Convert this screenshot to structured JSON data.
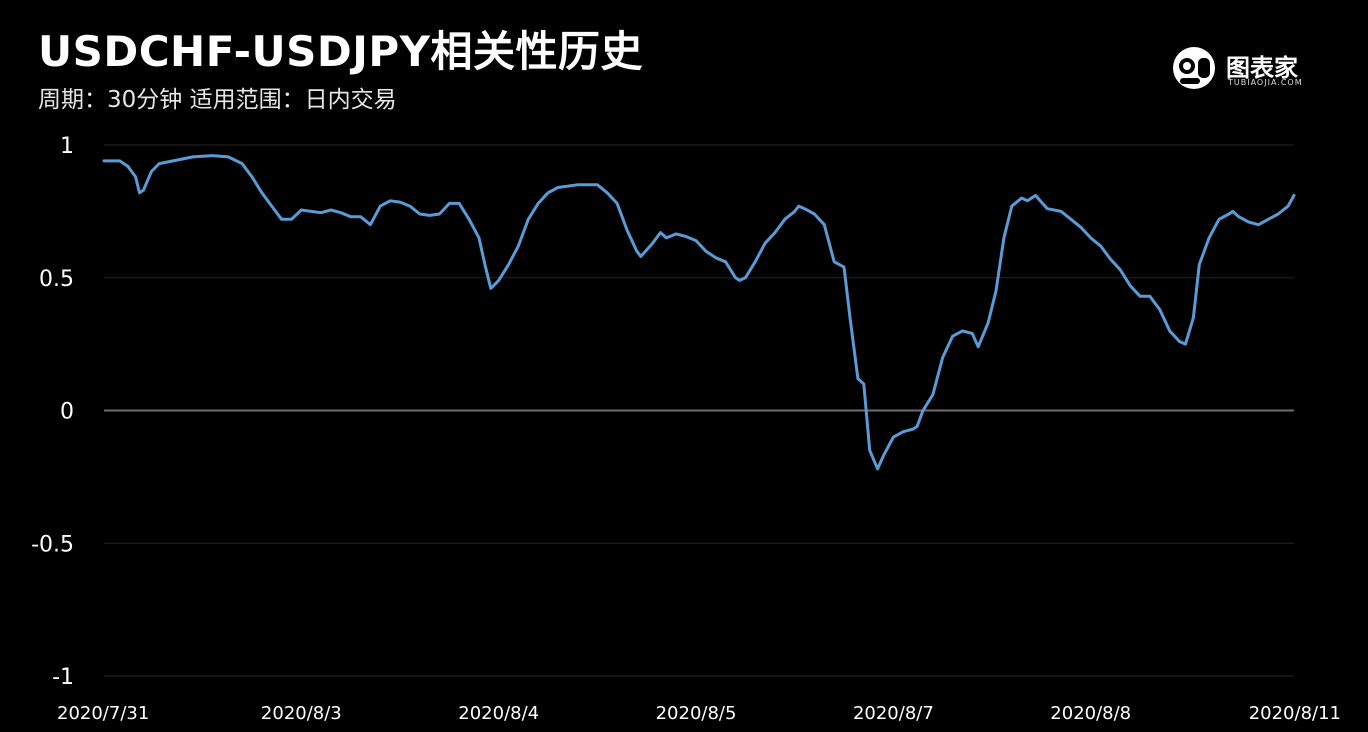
{
  "header": {
    "title": "USDCHF-USDJPY相关性历史",
    "subtitle": "周期：30分钟  适用范围：日内交易"
  },
  "logo": {
    "name": "图表家",
    "sub": "TUBIAOJIA.COM"
  },
  "chart_data": {
    "type": "line",
    "ylim": [
      -1,
      1
    ],
    "yticks": [
      1,
      0.5,
      0,
      -0.5,
      -1
    ],
    "ytick_labels": [
      "1",
      "0.5",
      "0",
      "-0.5",
      "-1"
    ],
    "xticks": [
      {
        "label": "2020/7/31",
        "x": 0
      },
      {
        "label": "2020/8/3",
        "x": 1
      },
      {
        "label": "2020/8/4",
        "x": 2
      },
      {
        "label": "2020/8/5",
        "x": 3
      },
      {
        "label": "2020/8/7",
        "x": 4
      },
      {
        "label": "2020/8/8",
        "x": 5
      },
      {
        "label": "2020/8/11",
        "x": 6
      }
    ],
    "grid": true,
    "line_color": "#5b9bd5",
    "series": [
      {
        "values": [
          [
            0.0,
            0.94
          ],
          [
            0.05,
            0.94
          ],
          [
            0.08,
            0.94
          ],
          [
            0.12,
            0.92
          ],
          [
            0.16,
            0.88
          ],
          [
            0.18,
            0.82
          ],
          [
            0.2,
            0.83
          ],
          [
            0.24,
            0.9
          ],
          [
            0.28,
            0.93
          ],
          [
            0.35,
            0.94
          ],
          [
            0.45,
            0.955
          ],
          [
            0.55,
            0.96
          ],
          [
            0.63,
            0.955
          ],
          [
            0.7,
            0.93
          ],
          [
            0.75,
            0.88
          ],
          [
            0.8,
            0.82
          ],
          [
            0.85,
            0.77
          ],
          [
            0.9,
            0.72
          ],
          [
            0.95,
            0.72
          ],
          [
            1.0,
            0.755
          ],
          [
            1.05,
            0.75
          ],
          [
            1.1,
            0.745
          ],
          [
            1.15,
            0.755
          ],
          [
            1.2,
            0.745
          ],
          [
            1.25,
            0.73
          ],
          [
            1.3,
            0.73
          ],
          [
            1.35,
            0.7
          ],
          [
            1.4,
            0.77
          ],
          [
            1.45,
            0.79
          ],
          [
            1.5,
            0.785
          ],
          [
            1.55,
            0.77
          ],
          [
            1.6,
            0.74
          ],
          [
            1.65,
            0.735
          ],
          [
            1.7,
            0.74
          ],
          [
            1.75,
            0.78
          ],
          [
            1.8,
            0.78
          ],
          [
            1.85,
            0.72
          ],
          [
            1.9,
            0.65
          ],
          [
            1.93,
            0.55
          ],
          [
            1.96,
            0.46
          ],
          [
            2.0,
            0.49
          ],
          [
            2.05,
            0.55
          ],
          [
            2.1,
            0.62
          ],
          [
            2.15,
            0.72
          ],
          [
            2.2,
            0.78
          ],
          [
            2.25,
            0.82
          ],
          [
            2.3,
            0.84
          ],
          [
            2.4,
            0.85
          ],
          [
            2.5,
            0.85
          ],
          [
            2.55,
            0.82
          ],
          [
            2.6,
            0.78
          ],
          [
            2.65,
            0.68
          ],
          [
            2.7,
            0.6
          ],
          [
            2.72,
            0.58
          ],
          [
            2.78,
            0.63
          ],
          [
            2.82,
            0.67
          ],
          [
            2.85,
            0.65
          ],
          [
            2.9,
            0.665
          ],
          [
            2.95,
            0.655
          ],
          [
            3.0,
            0.64
          ],
          [
            3.05,
            0.6
          ],
          [
            3.1,
            0.575
          ],
          [
            3.15,
            0.56
          ],
          [
            3.2,
            0.5
          ],
          [
            3.22,
            0.49
          ],
          [
            3.25,
            0.5
          ],
          [
            3.3,
            0.56
          ],
          [
            3.35,
            0.63
          ],
          [
            3.4,
            0.67
          ],
          [
            3.45,
            0.72
          ],
          [
            3.5,
            0.75
          ],
          [
            3.52,
            0.77
          ],
          [
            3.55,
            0.76
          ],
          [
            3.6,
            0.74
          ],
          [
            3.65,
            0.7
          ],
          [
            3.7,
            0.56
          ],
          [
            3.75,
            0.54
          ],
          [
            3.78,
            0.35
          ],
          [
            3.82,
            0.12
          ],
          [
            3.85,
            0.1
          ],
          [
            3.88,
            -0.15
          ],
          [
            3.92,
            -0.22
          ],
          [
            3.95,
            -0.17
          ],
          [
            4.0,
            -0.1
          ],
          [
            4.05,
            -0.08
          ],
          [
            4.1,
            -0.07
          ],
          [
            4.12,
            -0.06
          ],
          [
            4.15,
            0.0
          ],
          [
            4.2,
            0.06
          ],
          [
            4.25,
            0.2
          ],
          [
            4.3,
            0.28
          ],
          [
            4.35,
            0.3
          ],
          [
            4.4,
            0.29
          ],
          [
            4.43,
            0.24
          ],
          [
            4.48,
            0.33
          ],
          [
            4.52,
            0.45
          ],
          [
            4.56,
            0.65
          ],
          [
            4.6,
            0.77
          ],
          [
            4.65,
            0.8
          ],
          [
            4.68,
            0.79
          ],
          [
            4.72,
            0.81
          ],
          [
            4.78,
            0.76
          ],
          [
            4.85,
            0.75
          ],
          [
            4.9,
            0.72
          ],
          [
            4.95,
            0.69
          ],
          [
            5.0,
            0.65
          ],
          [
            5.05,
            0.62
          ],
          [
            5.1,
            0.57
          ],
          [
            5.15,
            0.53
          ],
          [
            5.2,
            0.47
          ],
          [
            5.25,
            0.43
          ],
          [
            5.3,
            0.43
          ],
          [
            5.35,
            0.38
          ],
          [
            5.4,
            0.3
          ],
          [
            5.45,
            0.26
          ],
          [
            5.48,
            0.25
          ],
          [
            5.52,
            0.35
          ],
          [
            5.55,
            0.55
          ],
          [
            5.6,
            0.65
          ],
          [
            5.65,
            0.72
          ],
          [
            5.7,
            0.74
          ],
          [
            5.72,
            0.75
          ],
          [
            5.75,
            0.73
          ],
          [
            5.8,
            0.71
          ],
          [
            5.85,
            0.7
          ],
          [
            5.9,
            0.72
          ],
          [
            5.95,
            0.74
          ],
          [
            6.0,
            0.77
          ],
          [
            6.03,
            0.81
          ]
        ]
      }
    ]
  }
}
